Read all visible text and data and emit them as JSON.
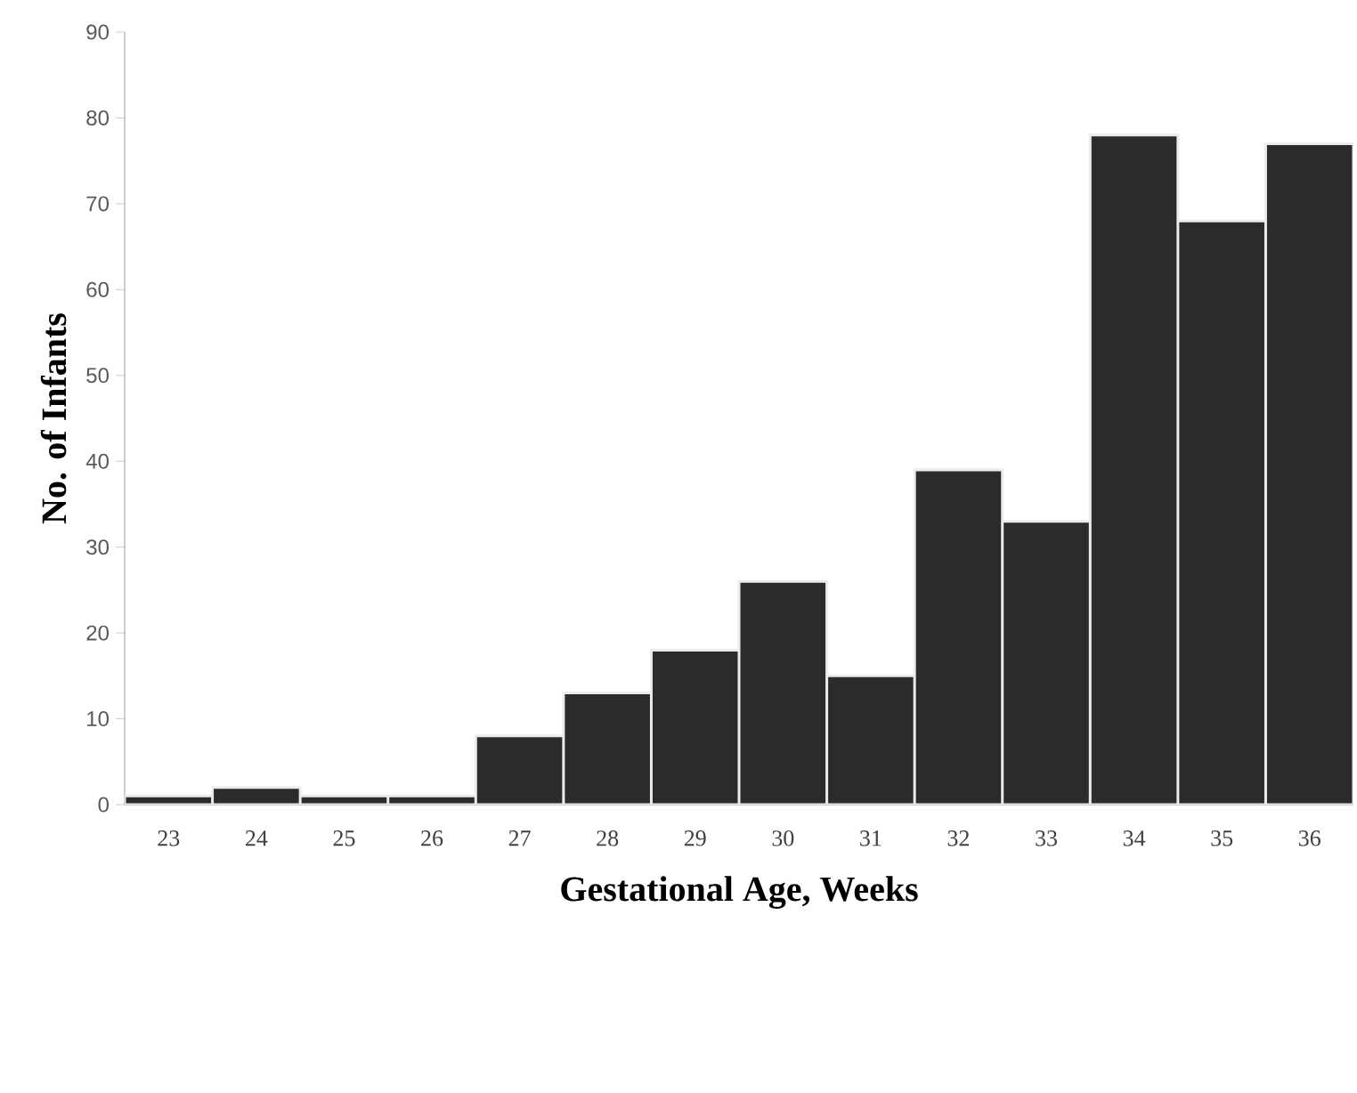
{
  "chart_data": {
    "type": "bar",
    "xlabel": "Gestational Age, Weeks",
    "ylabel": "No. of Infants",
    "categories": [
      "23",
      "24",
      "25",
      "26",
      "27",
      "28",
      "29",
      "30",
      "31",
      "32",
      "33",
      "34",
      "35",
      "36"
    ],
    "values": [
      1,
      2,
      1,
      1,
      8,
      13,
      18,
      26,
      15,
      39,
      33,
      78,
      68,
      77
    ],
    "color": "#2b2b2b",
    "ylim": [
      0,
      90
    ],
    "yticks": [
      0,
      10,
      20,
      30,
      40,
      50,
      60,
      70,
      80,
      90
    ],
    "grid": false
  }
}
